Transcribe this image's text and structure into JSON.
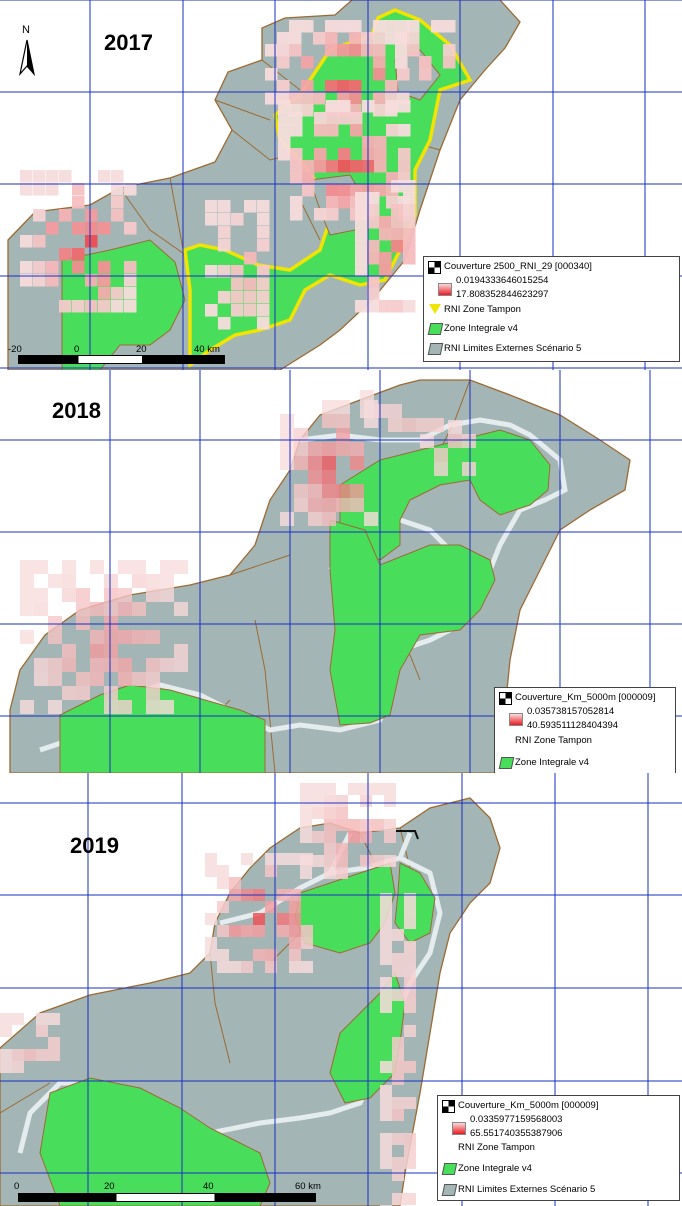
{
  "colors": {
    "land": "#a3b6b5",
    "zone_integrale": "#49dd5c",
    "tampon_2017": "#f0e400",
    "tampon_halo": "#e4ecee",
    "border": "#9c6a33",
    "grid": "#1a2fc4",
    "heat_low": "#f7dcdc",
    "heat_high": "#ea1a22"
  },
  "panels": [
    {
      "year": "2017",
      "north_label": "N",
      "legend": {
        "layer_title": "Couverture 2500_RNI_29 [000340]",
        "min_value": "0.0194333646015254",
        "max_value": "17.808352844623297",
        "tampon_label": "RNI Zone Tampon",
        "zone_label": "Zone Integrale v4",
        "limites_label": "RNI Limites Externes Scénario 5"
      },
      "scale": {
        "ticks": [
          "-20",
          "0",
          "20",
          "40 km"
        ]
      }
    },
    {
      "year": "2018",
      "legend": {
        "layer_title": "Couverture_Km_5000m [000009]",
        "min_value": "0.035738157052814",
        "max_value": "40.593511128404394",
        "tampon_label": "RNI Zone Tampon",
        "zone_label": "Zone Integrale v4"
      }
    },
    {
      "year": "2019",
      "legend": {
        "layer_title": "Couverture_Km_5000m [000009]",
        "min_value": "0.0335977159568003",
        "max_value": "65.551740355387906",
        "tampon_label": "RNI Zone Tampon",
        "zone_label": "Zone Integrale v4",
        "limites_label": "RNI Limites Externes Scénario 5"
      },
      "scale": {
        "ticks": [
          "0",
          "20",
          "40",
          "60 km"
        ]
      }
    }
  ]
}
